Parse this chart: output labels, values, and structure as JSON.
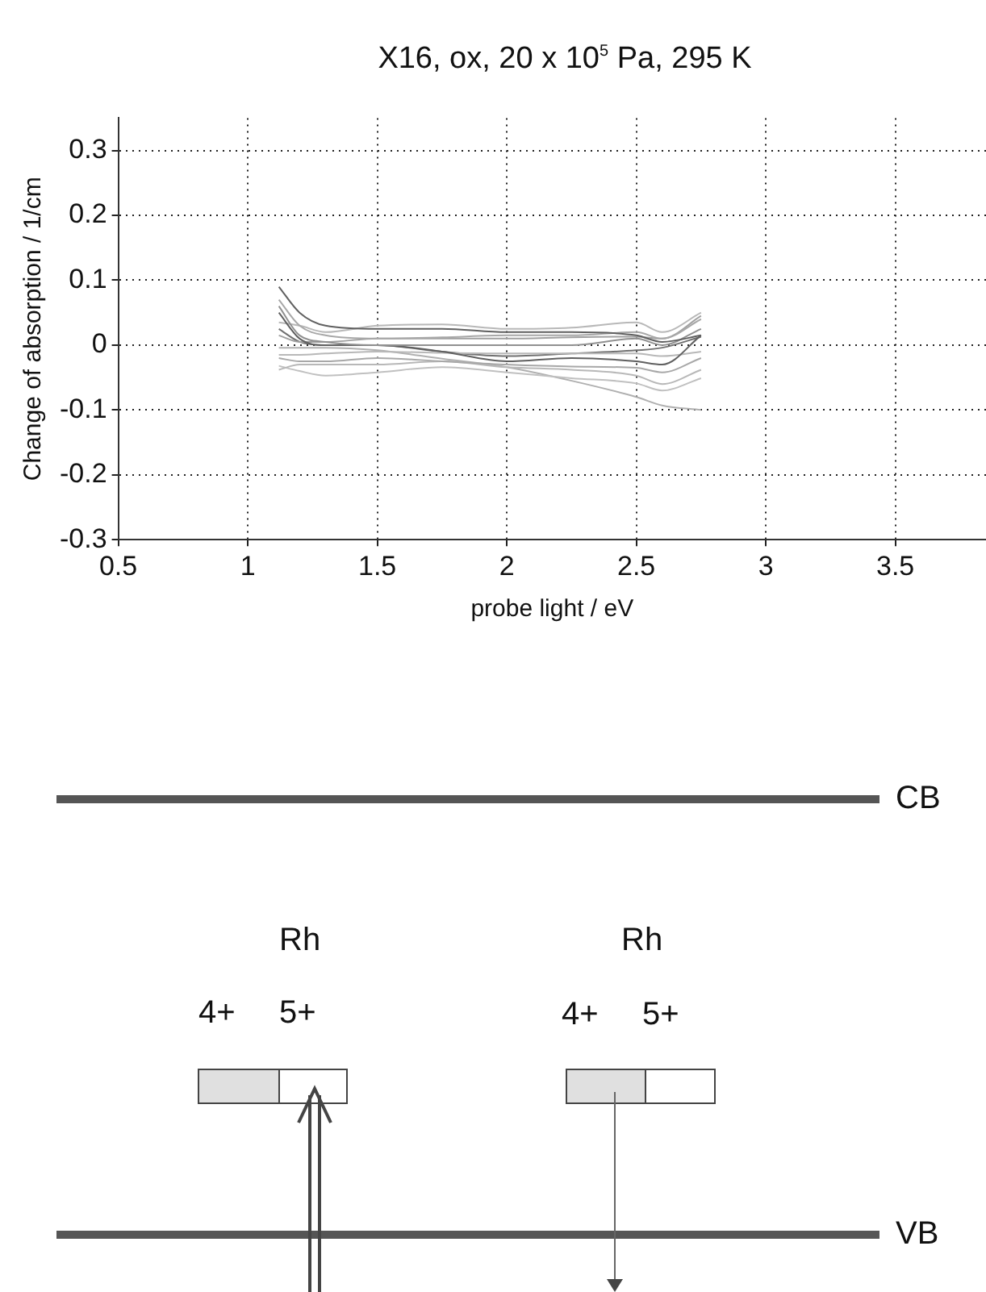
{
  "chart_data": {
    "type": "line",
    "title": "X16, ox, 20 x 10$^{5}$ Pa, 295 K",
    "xlabel": "probe light / eV",
    "ylabel": "Change of absorption / 1/cm",
    "x": [
      1.12,
      1.2,
      1.3,
      1.5,
      1.75,
      2,
      2.25,
      2.5,
      2.6,
      2.75
    ],
    "series": [
      {
        "color": "#606060",
        "values": [
          0.09,
          0.05,
          0.03,
          0.025,
          0.025,
          0.02,
          0.02,
          0.015,
          0.005,
          0.015
        ]
      },
      {
        "color": "#a8a8a8",
        "values": [
          0.07,
          0.03,
          0.015,
          0.01,
          0.012,
          0.015,
          0.015,
          0.02,
          0.01,
          0.04
        ]
      },
      {
        "color": "#909090",
        "values": [
          0.06,
          0.015,
          0.005,
          0,
          0,
          0,
          0,
          0.01,
          0,
          0.025
        ]
      },
      {
        "color": "#606060",
        "values": [
          0.05,
          0.01,
          0,
          0,
          -0.01,
          -0.025,
          -0.02,
          -0.025,
          -0.03,
          0.015
        ]
      },
      {
        "color": "#b8b8b8",
        "values": [
          0.035,
          0.03,
          0.02,
          0.03,
          0.032,
          0.025,
          0.027,
          0.035,
          0.02,
          0.05
        ]
      },
      {
        "color": "#a0a0a0",
        "values": [
          0.015,
          0.005,
          0.005,
          0.01,
          0.01,
          0.01,
          0.012,
          0.013,
          0.01,
          0.045
        ]
      },
      {
        "color": "#b8b8b8",
        "values": [
          -0.015,
          -0.015,
          -0.013,
          -0.01,
          -0.012,
          -0.013,
          -0.013,
          -0.013,
          -0.017,
          -0.01
        ]
      },
      {
        "color": "#a8a8a8",
        "values": [
          -0.02,
          -0.025,
          -0.025,
          -0.02,
          -0.025,
          -0.03,
          -0.033,
          -0.035,
          -0.042,
          -0.02
        ]
      },
      {
        "color": "#b8b8b8",
        "values": [
          -0.038,
          -0.03,
          -0.03,
          -0.03,
          -0.025,
          -0.034,
          -0.038,
          -0.047,
          -0.06,
          -0.038
        ]
      },
      {
        "color": "#c0c0c0",
        "values": [
          -0.032,
          -0.04,
          -0.047,
          -0.042,
          -0.034,
          -0.042,
          -0.051,
          -0.059,
          -0.07,
          -0.051
        ]
      },
      {
        "color": "#b0b0b0",
        "values": [
          -0.004,
          -0.004,
          -0.004,
          -0.008,
          -0.021,
          -0.034,
          -0.055,
          -0.08,
          -0.093,
          -0.1
        ]
      },
      {
        "color": "#707070",
        "values": [
          0.025,
          0.005,
          0,
          0,
          -0.01,
          -0.017,
          -0.013,
          -0.008,
          -0.004,
          0.013
        ]
      }
    ],
    "xlim": [
      0.5,
      3.85
    ],
    "xticks": [
      0.5,
      1,
      1.5,
      2,
      2.5,
      3,
      3.5
    ],
    "ylim": [
      -0.3,
      0.35
    ],
    "yticks": [
      -0.3,
      -0.2,
      -0.1,
      0,
      0.1,
      0.2,
      0.3
    ],
    "grid": true,
    "legend": false,
    "marker": "none",
    "line_style": "solid",
    "annotations": [
      "CB",
      "VB",
      "Rh",
      "4+",
      "5+",
      "Rh",
      "4+",
      "5+"
    ]
  }
}
